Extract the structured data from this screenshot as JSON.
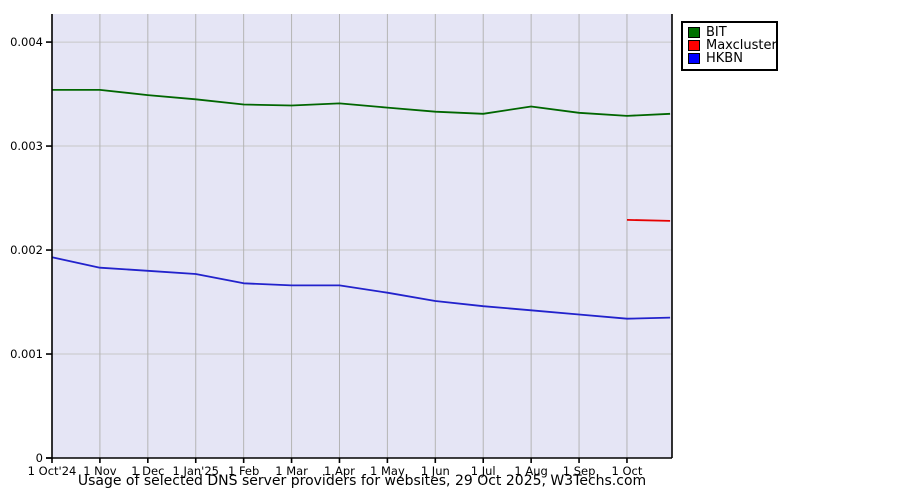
{
  "chart_data": {
    "type": "line",
    "title": "Usage of selected DNS server providers for websites, 29 Oct 2025, W3Techs.com",
    "xlabel": "",
    "ylabel": "",
    "x_unit": "months since 1 Oct 2024",
    "xlim_months": [
      0,
      12.94
    ],
    "ylim": [
      0,
      0.00427
    ],
    "x_tick_months": [
      0,
      1,
      2,
      3,
      4,
      5,
      6,
      7,
      8,
      9,
      10,
      11,
      12
    ],
    "x_tick_labels": [
      "1 Oct'24",
      "1 Nov",
      "1 Dec",
      "1 Jan'25",
      "1 Feb",
      "1 Mar",
      "1 Apr",
      "1 May",
      "1 Jun",
      "1 Jul",
      "1 Aug",
      "1 Sep",
      "1 Oct"
    ],
    "y_ticks": [
      0,
      0.001,
      0.002,
      0.003,
      0.004
    ],
    "y_tick_labels": [
      "0",
      "0.001",
      "0.002",
      "0.003",
      "0.004"
    ],
    "grid": true,
    "legend_position": "top-right-outside",
    "colors": {
      "plot_background": "#e5e5f5",
      "outer_background": "#ffffff",
      "h_grid": "#c6c6c6",
      "v_grid": "#b4b4b4",
      "axis": "#000000"
    },
    "series": [
      {
        "name": "BIT",
        "line_color": "#006600",
        "legend_color": "#007000",
        "x": [
          0,
          1,
          2,
          3,
          4,
          5,
          6,
          7,
          8,
          9,
          10,
          11,
          12,
          12.9
        ],
        "values": [
          0.00354,
          0.00354,
          0.00349,
          0.00345,
          0.0034,
          0.00339,
          0.00341,
          0.00337,
          0.00333,
          0.00331,
          0.00338,
          0.00332,
          0.00329,
          0.00331
        ]
      },
      {
        "name": "Maxcluster",
        "line_color": "#e60000",
        "legend_color": "#ff0000",
        "x": [
          12,
          12.9
        ],
        "values": [
          0.00229,
          0.00228
        ]
      },
      {
        "name": "HKBN",
        "line_color": "#2222cc",
        "legend_color": "#0000ff",
        "x": [
          0,
          1,
          2,
          3,
          4,
          5,
          6,
          7,
          8,
          9,
          10,
          11,
          12,
          12.9
        ],
        "values": [
          0.00193,
          0.00183,
          0.0018,
          0.00177,
          0.00168,
          0.00166,
          0.00166,
          0.00159,
          0.00151,
          0.00146,
          0.00142,
          0.00138,
          0.00134,
          0.00135
        ]
      }
    ]
  }
}
